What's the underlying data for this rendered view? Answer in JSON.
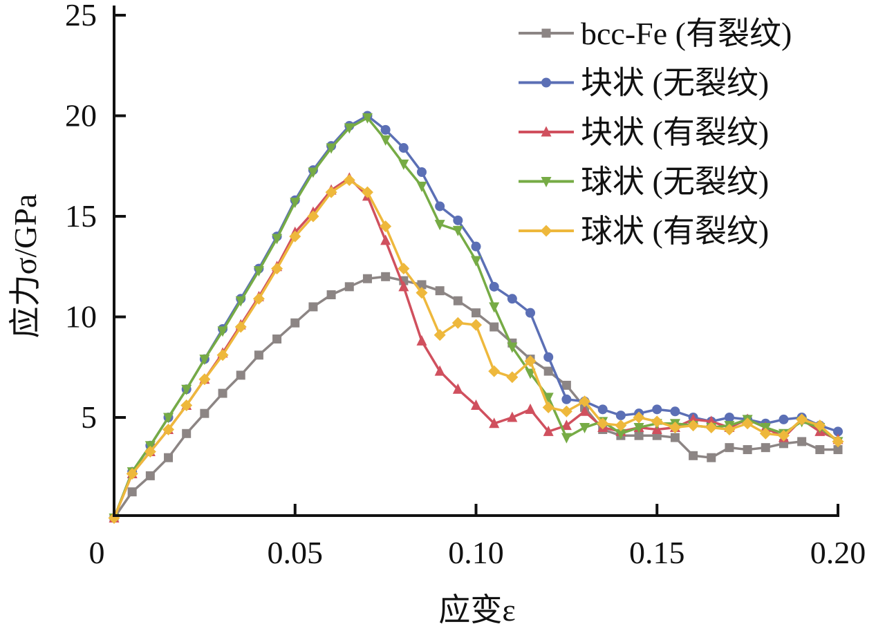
{
  "chart_data": {
    "type": "line",
    "title": "",
    "xlabel": "应变ε",
    "ylabel": "应力σ/GPa",
    "xlim": [
      0,
      0.2
    ],
    "ylim": [
      0,
      25
    ],
    "grid": false,
    "legend_position": "top-right",
    "x_ticks": [
      0,
      0.05,
      0.1,
      0.15,
      0.2
    ],
    "x_tick_labels": [
      "0",
      "0.05",
      "0.10",
      "0.15",
      "0.20"
    ],
    "y_ticks": [
      5,
      10,
      15,
      20,
      25
    ],
    "y_tick_labels": [
      "5",
      "10",
      "15",
      "20",
      "25"
    ],
    "x": [
      0,
      0.005,
      0.01,
      0.015,
      0.02,
      0.025,
      0.03,
      0.035,
      0.04,
      0.045,
      0.05,
      0.055,
      0.06,
      0.065,
      0.07,
      0.075,
      0.08,
      0.085,
      0.09,
      0.095,
      0.1,
      0.105,
      0.11,
      0.115,
      0.12,
      0.125,
      0.13,
      0.135,
      0.14,
      0.145,
      0.15,
      0.155,
      0.16,
      0.165,
      0.17,
      0.175,
      0.18,
      0.185,
      0.19,
      0.195,
      0.2
    ],
    "series": [
      {
        "name": "bcc-Fe (有裂纹)",
        "color": "#8c8584",
        "marker": "square",
        "values": [
          0,
          1.3,
          2.1,
          3.0,
          4.2,
          5.2,
          6.2,
          7.1,
          8.1,
          8.9,
          9.7,
          10.5,
          11.1,
          11.5,
          11.9,
          12.0,
          11.8,
          11.6,
          11.3,
          10.8,
          10.2,
          9.5,
          8.7,
          7.9,
          7.3,
          6.6,
          5.5,
          4.4,
          4.1,
          4.1,
          4.1,
          4.0,
          3.1,
          3.0,
          3.5,
          3.4,
          3.5,
          3.7,
          3.8,
          3.4,
          3.4
        ]
      },
      {
        "name": "块状 (无裂纹)",
        "color": "#5b6fb5",
        "marker": "circle",
        "values": [
          0,
          2.3,
          3.6,
          5.0,
          6.4,
          7.9,
          9.4,
          10.9,
          12.4,
          14.0,
          15.8,
          17.3,
          18.5,
          19.5,
          20.0,
          19.3,
          18.4,
          17.2,
          15.5,
          14.8,
          13.5,
          11.5,
          10.9,
          10.2,
          8.0,
          5.9,
          5.8,
          5.4,
          5.1,
          5.2,
          5.4,
          5.3,
          5.0,
          4.8,
          5.0,
          4.9,
          4.7,
          4.9,
          5.0,
          4.6,
          4.3
        ]
      },
      {
        "name": "块状 (有裂纹)",
        "color": "#d0505e",
        "marker": "triangle-up",
        "values": [
          0,
          2.2,
          3.3,
          4.4,
          5.6,
          6.9,
          8.2,
          9.6,
          11.0,
          12.5,
          14.2,
          15.2,
          16.3,
          16.9,
          16.0,
          13.8,
          11.5,
          8.8,
          7.3,
          6.4,
          5.6,
          4.7,
          5.0,
          5.4,
          4.3,
          4.6,
          5.3,
          4.5,
          4.3,
          4.5,
          4.4,
          4.5,
          4.9,
          4.8,
          4.5,
          4.9,
          4.5,
          4.0,
          4.9,
          4.3,
          3.9
        ]
      },
      {
        "name": "球状 (无裂纹)",
        "color": "#76ab45",
        "marker": "triangle-down",
        "values": [
          0,
          2.3,
          3.6,
          5.0,
          6.4,
          7.9,
          9.3,
          10.8,
          12.3,
          13.9,
          15.7,
          17.2,
          18.4,
          19.4,
          19.9,
          18.8,
          17.6,
          16.5,
          14.6,
          14.3,
          12.8,
          10.5,
          8.5,
          7.2,
          6.0,
          4.0,
          4.5,
          4.8,
          4.2,
          4.5,
          4.7,
          4.7,
          4.6,
          4.5,
          4.6,
          4.9,
          4.5,
          4.2,
          4.8,
          4.5,
          3.8
        ]
      },
      {
        "name": "球状 (有裂纹)",
        "color": "#eeb83c",
        "marker": "diamond",
        "values": [
          0,
          2.2,
          3.3,
          4.4,
          5.6,
          6.9,
          8.1,
          9.5,
          10.9,
          12.4,
          14.0,
          15.0,
          16.2,
          16.8,
          16.2,
          14.5,
          12.4,
          11.2,
          9.1,
          9.7,
          9.6,
          7.3,
          7.0,
          7.8,
          5.5,
          5.3,
          5.8,
          4.7,
          4.6,
          5.0,
          4.8,
          4.5,
          4.6,
          4.5,
          4.4,
          4.7,
          4.2,
          4.1,
          4.9,
          4.6,
          3.8
        ]
      }
    ]
  }
}
